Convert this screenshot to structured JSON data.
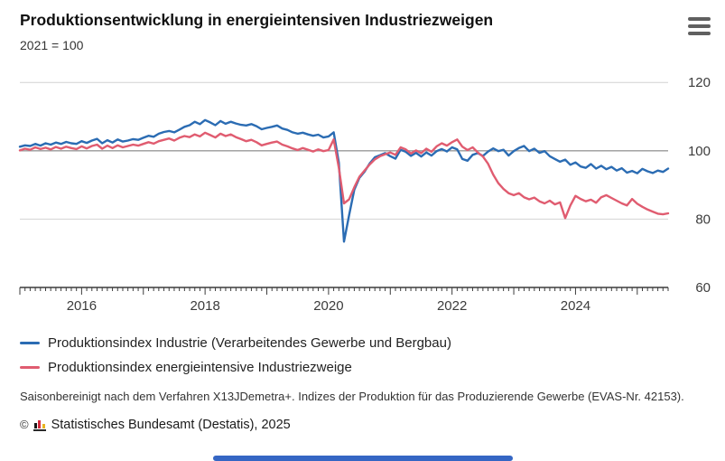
{
  "header": {
    "title": "Produktionsentwicklung in energieintensiven Industriezweigen",
    "subtitle": "2021 = 100"
  },
  "colors": {
    "series_blue": "#2b6cb3",
    "series_red": "#e05c70",
    "grid": "#d2d2d2",
    "grid_strong": "#9a9a9a",
    "axis": "#3c3c3c",
    "tick_label": "#3c3c3c"
  },
  "chart_data": {
    "type": "line",
    "title": "Produktionsentwicklung in energieintensiven Industriezweigen",
    "unit_note": "2021 = 100",
    "start_year": 2015,
    "x_start": "2015-01",
    "x_end": "2025-07",
    "x_frequency": "monthly",
    "x_tick_years": [
      2016,
      2018,
      2020,
      2022,
      2024
    ],
    "x_tick_labels": [
      "2016",
      "2018",
      "2020",
      "2022",
      "2024"
    ],
    "y_ticks": [
      60,
      80,
      100,
      120
    ],
    "ylim": [
      60,
      124
    ],
    "reference_line": 100,
    "grid": "horizontal",
    "legend_position": "bottom",
    "series": [
      {
        "name": "Produktionsindex Industrie (Verarbeitendes Gewerbe und Bergbau)",
        "color": "#2b6cb3",
        "values": [
          101.2,
          101.6,
          101.4,
          102.0,
          101.5,
          102.2,
          101.8,
          102.4,
          102.0,
          102.6,
          102.2,
          102.0,
          102.8,
          102.3,
          103.0,
          103.5,
          102.2,
          103.1,
          102.4,
          103.3,
          102.7,
          103.0,
          103.4,
          103.2,
          103.8,
          104.4,
          104.1,
          105.0,
          105.5,
          105.8,
          105.4,
          106.2,
          107.0,
          107.5,
          108.5,
          107.8,
          109.0,
          108.3,
          107.5,
          108.7,
          107.9,
          108.5,
          108.0,
          107.6,
          107.4,
          107.8,
          107.2,
          106.3,
          106.7,
          107.0,
          107.4,
          106.5,
          106.1,
          105.4,
          105.0,
          105.3,
          104.8,
          104.4,
          104.7,
          103.9,
          104.2,
          105.4,
          96.5,
          73.4,
          81.2,
          88.6,
          92.1,
          93.9,
          96.3,
          98.1,
          98.7,
          99.3,
          98.4,
          97.7,
          100.3,
          99.7,
          98.5,
          99.4,
          98.3,
          99.5,
          98.6,
          99.9,
          100.5,
          99.8,
          101.0,
          100.4,
          97.6,
          97.1,
          98.8,
          99.3,
          98.5,
          99.8,
          100.7,
          99.9,
          100.3,
          98.6,
          99.9,
          100.8,
          101.4,
          99.9,
          100.6,
          99.4,
          99.9,
          98.4,
          97.6,
          96.8,
          97.4,
          95.9,
          96.6,
          95.4,
          95.0,
          96.1,
          94.8,
          95.6,
          94.6,
          95.3,
          94.2,
          94.9,
          93.6,
          94.1,
          93.4,
          94.7,
          94.0,
          93.5,
          94.2,
          93.8,
          94.8
        ]
      },
      {
        "name": "Produktionsindex energieintensive Industriezweige",
        "color": "#e05c70",
        "values": [
          100.1,
          100.6,
          100.3,
          101.0,
          100.5,
          100.9,
          100.4,
          101.1,
          100.6,
          101.2,
          100.8,
          100.5,
          101.3,
          100.7,
          101.4,
          101.8,
          100.6,
          101.5,
          100.8,
          101.6,
          101.0,
          101.4,
          101.8,
          101.5,
          102.0,
          102.5,
          102.1,
          102.8,
          103.2,
          103.6,
          103.0,
          103.8,
          104.3,
          104.0,
          104.8,
          104.2,
          105.3,
          104.6,
          103.9,
          105.0,
          104.3,
          104.8,
          104.0,
          103.4,
          102.8,
          103.2,
          102.5,
          101.6,
          102.0,
          102.4,
          102.7,
          101.8,
          101.3,
          100.7,
          100.2,
          100.8,
          100.3,
          99.8,
          100.4,
          99.9,
          100.2,
          103.3,
          95.0,
          84.6,
          85.8,
          89.3,
          92.4,
          94.2,
          96.0,
          97.5,
          98.4,
          99.0,
          99.5,
          98.8,
          101.0,
          100.4,
          99.2,
          100.1,
          99.3,
          100.6,
          99.7,
          101.3,
          102.2,
          101.5,
          102.5,
          103.3,
          101.2,
          100.2,
          101.0,
          99.5,
          98.3,
          96.2,
          93.0,
          90.5,
          88.8,
          87.6,
          87.0,
          87.6,
          86.4,
          85.8,
          86.3,
          85.2,
          84.6,
          85.4,
          84.3,
          84.9,
          80.3,
          84.0,
          86.8,
          85.9,
          85.2,
          85.7,
          84.8,
          86.4,
          87.0,
          86.2,
          85.4,
          84.6,
          84.0,
          85.9,
          84.5,
          83.6,
          82.8,
          82.2,
          81.6,
          81.4,
          81.7
        ]
      }
    ]
  },
  "footnote": "Saisonbereinigt nach dem Verfahren X13JDemetra+. Indizes der Produktion für das Produzierende Gewerbe (EVAS-Nr. 42153).",
  "copyright": {
    "symbol": "©",
    "text": "Statistisches Bundesamt (Destatis), 2025"
  }
}
